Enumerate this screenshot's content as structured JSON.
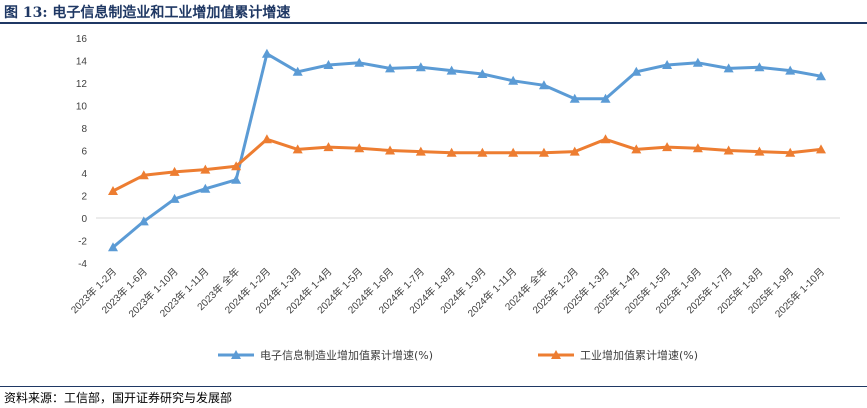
{
  "figure": {
    "title": "图 13:  电子信息制造业和工业增加值累计增速",
    "source": "资料来源：工信部，国开证券研究与发展部"
  },
  "chart_data": {
    "type": "line",
    "categories": [
      "2023年 1-2月",
      "2023年 1-6月",
      "2023年 1-10月",
      "2023年 1-11月",
      "2023年 全年",
      "2024年 1-2月",
      "2024年 1-3月",
      "2024年 1-4月",
      "2024年 1-5月",
      "2024年 1-6月",
      "2024年 1-7月",
      "2024年 1-8月",
      "2024年 1-9月",
      "2024年 1-11月",
      "2024年 全年",
      "2025年 1-2月",
      "2025年 1-3月",
      "2025年 1-4月",
      "2025年 1-5月",
      "2025年 1-6月",
      "2025年 1-7月",
      "2025年 1-8月",
      "2025年 1-9月",
      "2025年 1-10月"
    ],
    "series": [
      {
        "name": "电子信息制造业增加值累计增速(%)",
        "color": "#5b9bd5",
        "values": [
          -2.6,
          -0.3,
          1.7,
          2.6,
          3.4,
          14.6,
          13.0,
          13.6,
          13.8,
          13.3,
          13.4,
          13.1,
          12.8,
          12.2,
          11.8,
          10.6,
          10.6,
          13.0,
          13.6,
          13.8,
          13.3,
          13.4,
          13.1,
          12.6
        ]
      },
      {
        "name": "工业增加值累计增速(%)",
        "color": "#ed7d31",
        "values": [
          2.4,
          3.8,
          4.1,
          4.3,
          4.6,
          7.0,
          6.1,
          6.3,
          6.2,
          6.0,
          5.9,
          5.8,
          5.8,
          5.8,
          5.8,
          5.9,
          7.0,
          6.1,
          6.3,
          6.2,
          6.0,
          5.9,
          5.8,
          6.1
        ]
      }
    ],
    "yticks": [
      "16",
      "14",
      "12",
      "10",
      "8",
      "6",
      "4",
      "2",
      "0",
      "-2",
      "-4"
    ],
    "ylim": [
      -4,
      16
    ],
    "grid": false,
    "legend": "bottom"
  }
}
